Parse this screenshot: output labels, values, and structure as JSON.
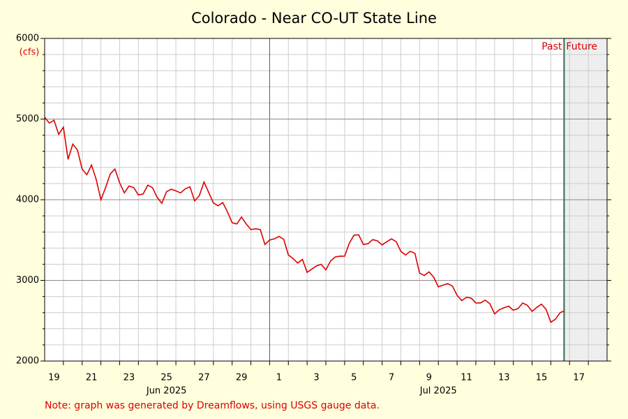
{
  "chart_data": {
    "type": "line",
    "title": "Colorado - Near CO-UT State Line",
    "y_label": "(cfs)",
    "note": "Note: graph was generated by Dreamflows, using USGS gauge data.",
    "color": "#dd0000",
    "divider": {
      "x": "2025-07-16 17:00",
      "left_label": "Past",
      "right_label": "Future",
      "color": "#2e6e4e",
      "future_fill": "#eeeeee"
    },
    "xlim": [
      "2025-06-19 00:00",
      "2025-07-19 00:00"
    ],
    "ylim": [
      2000,
      6000
    ],
    "yticks": [
      2000,
      3000,
      4000,
      5000,
      6000
    ],
    "yminor": [
      2200,
      2400,
      2600,
      2800,
      3200,
      3400,
      3600,
      3800,
      4200,
      4400,
      4600,
      4800,
      5200,
      5400,
      5600,
      5800
    ],
    "grid": true,
    "xticks": [
      {
        "value": "2025-06-19 12:00",
        "label": "19"
      },
      {
        "value": "2025-06-21 12:00",
        "label": "21"
      },
      {
        "value": "2025-06-23 12:00",
        "label": "23"
      },
      {
        "value": "2025-06-25 12:00",
        "label": "25"
      },
      {
        "value": "2025-06-27 12:00",
        "label": "27"
      },
      {
        "value": "2025-06-29 12:00",
        "label": "29"
      },
      {
        "value": "2025-07-01 12:00",
        "label": "1"
      },
      {
        "value": "2025-07-03 12:00",
        "label": "3"
      },
      {
        "value": "2025-07-05 12:00",
        "label": "5"
      },
      {
        "value": "2025-07-07 12:00",
        "label": "7"
      },
      {
        "value": "2025-07-09 12:00",
        "label": "9"
      },
      {
        "value": "2025-07-11 12:00",
        "label": "11"
      },
      {
        "value": "2025-07-13 12:00",
        "label": "13"
      },
      {
        "value": "2025-07-15 12:00",
        "label": "15"
      },
      {
        "value": "2025-07-17 12:00",
        "label": "17"
      }
    ],
    "month_labels": [
      {
        "value": "2025-06-25 12:00",
        "label": "Jun 2025"
      },
      {
        "value": "2025-07-10 00:00",
        "label": "Jul 2025"
      }
    ],
    "xgrid": [
      "2025-06-20 00:00",
      "2025-06-21 00:00",
      "2025-06-22 00:00",
      "2025-06-23 00:00",
      "2025-06-24 00:00",
      "2025-06-25 00:00",
      "2025-06-26 00:00",
      "2025-06-27 00:00",
      "2025-06-28 00:00",
      "2025-06-29 00:00",
      "2025-06-30 00:00",
      "2025-07-01 00:00",
      "2025-07-02 00:00",
      "2025-07-03 00:00",
      "2025-07-04 00:00",
      "2025-07-05 00:00",
      "2025-07-06 00:00",
      "2025-07-07 00:00",
      "2025-07-08 00:00",
      "2025-07-09 00:00",
      "2025-07-10 00:00",
      "2025-07-11 00:00",
      "2025-07-12 00:00",
      "2025-07-13 00:00",
      "2025-07-14 00:00",
      "2025-07-15 00:00",
      "2025-07-16 00:00",
      "2025-07-17 00:00",
      "2025-07-18 00:00"
    ],
    "x": [
      "2025-06-19 00:00",
      "2025-06-19 06:00",
      "2025-06-19 12:00",
      "2025-06-19 18:00",
      "2025-06-20 00:00",
      "2025-06-20 06:00",
      "2025-06-20 12:00",
      "2025-06-20 18:00",
      "2025-06-21 00:00",
      "2025-06-21 06:00",
      "2025-06-21 12:00",
      "2025-06-21 18:00",
      "2025-06-22 00:00",
      "2025-06-22 06:00",
      "2025-06-22 12:00",
      "2025-06-22 18:00",
      "2025-06-23 00:00",
      "2025-06-23 06:00",
      "2025-06-23 12:00",
      "2025-06-23 18:00",
      "2025-06-24 00:00",
      "2025-06-24 06:00",
      "2025-06-24 12:00",
      "2025-06-24 18:00",
      "2025-06-25 00:00",
      "2025-06-25 06:00",
      "2025-06-25 12:00",
      "2025-06-25 18:00",
      "2025-06-26 00:00",
      "2025-06-26 06:00",
      "2025-06-26 12:00",
      "2025-06-26 18:00",
      "2025-06-27 00:00",
      "2025-06-27 06:00",
      "2025-06-27 12:00",
      "2025-06-27 18:00",
      "2025-06-28 00:00",
      "2025-06-28 06:00",
      "2025-06-28 12:00",
      "2025-06-28 18:00",
      "2025-06-29 00:00",
      "2025-06-29 06:00",
      "2025-06-29 12:00",
      "2025-06-29 18:00",
      "2025-06-30 00:00",
      "2025-06-30 06:00",
      "2025-06-30 12:00",
      "2025-06-30 18:00",
      "2025-07-01 00:00",
      "2025-07-01 06:00",
      "2025-07-01 12:00",
      "2025-07-01 18:00",
      "2025-07-02 00:00",
      "2025-07-02 06:00",
      "2025-07-02 12:00",
      "2025-07-02 18:00",
      "2025-07-03 00:00",
      "2025-07-03 06:00",
      "2025-07-03 12:00",
      "2025-07-03 18:00",
      "2025-07-04 00:00",
      "2025-07-04 06:00",
      "2025-07-04 12:00",
      "2025-07-04 18:00",
      "2025-07-05 00:00",
      "2025-07-05 06:00",
      "2025-07-05 12:00",
      "2025-07-05 18:00",
      "2025-07-06 00:00",
      "2025-07-06 06:00",
      "2025-07-06 12:00",
      "2025-07-06 18:00",
      "2025-07-07 00:00",
      "2025-07-07 06:00",
      "2025-07-07 12:00",
      "2025-07-07 18:00",
      "2025-07-08 00:00",
      "2025-07-08 06:00",
      "2025-07-08 12:00",
      "2025-07-08 18:00",
      "2025-07-09 00:00",
      "2025-07-09 06:00",
      "2025-07-09 12:00",
      "2025-07-09 18:00",
      "2025-07-10 00:00",
      "2025-07-10 06:00",
      "2025-07-10 12:00",
      "2025-07-10 18:00",
      "2025-07-11 00:00",
      "2025-07-11 06:00",
      "2025-07-11 12:00",
      "2025-07-11 18:00",
      "2025-07-12 00:00",
      "2025-07-12 06:00",
      "2025-07-12 12:00",
      "2025-07-12 18:00",
      "2025-07-13 00:00",
      "2025-07-13 06:00",
      "2025-07-13 12:00",
      "2025-07-13 18:00",
      "2025-07-14 00:00",
      "2025-07-14 06:00",
      "2025-07-14 12:00",
      "2025-07-14 18:00",
      "2025-07-15 00:00",
      "2025-07-15 06:00",
      "2025-07-15 12:00",
      "2025-07-15 18:00",
      "2025-07-16 00:00",
      "2025-07-16 06:00",
      "2025-07-16 12:00",
      "2025-07-16 18:00"
    ],
    "values": [
      5020,
      4950,
      4985,
      4810,
      4900,
      4500,
      4690,
      4615,
      4380,
      4310,
      4430,
      4250,
      4000,
      4150,
      4320,
      4380,
      4210,
      4085,
      4170,
      4150,
      4060,
      4070,
      4180,
      4150,
      4030,
      3955,
      4100,
      4130,
      4110,
      4085,
      4135,
      4160,
      3985,
      4050,
      4220,
      4090,
      3960,
      3925,
      3965,
      3850,
      3715,
      3700,
      3785,
      3700,
      3630,
      3640,
      3630,
      3445,
      3500,
      3515,
      3545,
      3510,
      3315,
      3270,
      3215,
      3260,
      3100,
      3140,
      3180,
      3200,
      3130,
      3240,
      3290,
      3300,
      3300,
      3460,
      3560,
      3565,
      3445,
      3455,
      3505,
      3490,
      3440,
      3480,
      3515,
      3480,
      3360,
      3315,
      3360,
      3335,
      3090,
      3060,
      3105,
      3040,
      2920,
      2940,
      2960,
      2930,
      2815,
      2750,
      2790,
      2780,
      2720,
      2720,
      2755,
      2710,
      2585,
      2635,
      2660,
      2680,
      2630,
      2650,
      2720,
      2690,
      2615,
      2665,
      2705,
      2640,
      2480,
      2520,
      2600,
      2625
    ]
  }
}
